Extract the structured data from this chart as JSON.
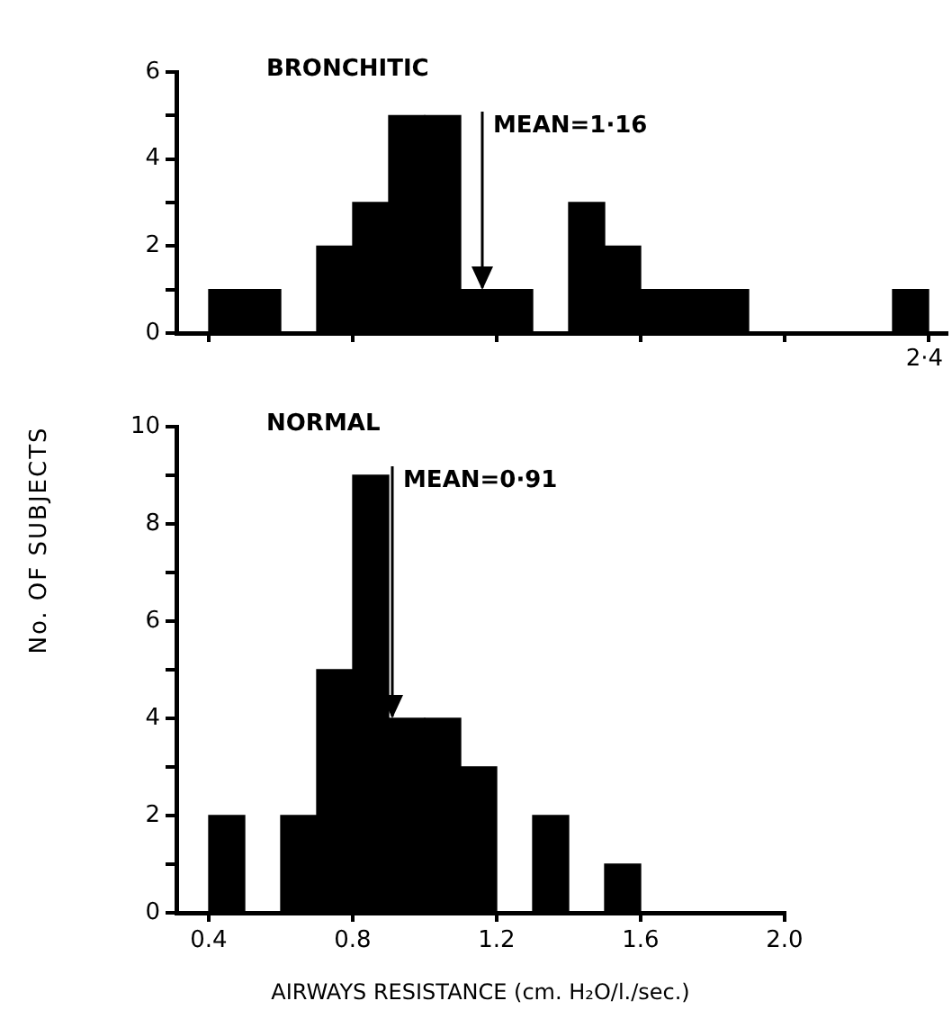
{
  "chart_data": [
    {
      "type": "histogram",
      "title": "BRONCHITIC",
      "color": "#000000",
      "tick_labels": "y",
      "bins": [
        0.4,
        0.5,
        0.6,
        0.7,
        0.8,
        0.9,
        1.0,
        1.1,
        1.2,
        1.3,
        1.4,
        1.5,
        1.6,
        1.7,
        1.8,
        1.9,
        2.0,
        2.1,
        2.2,
        2.3,
        2.4
      ],
      "values": [
        1,
        1,
        0,
        2,
        3,
        5,
        5,
        1,
        1,
        0,
        3,
        2,
        1,
        1,
        1,
        0,
        0,
        0,
        0,
        1
      ],
      "xlim": [
        0.31,
        2.45
      ],
      "xticks": [
        0.4,
        0.8,
        1.2,
        1.6,
        2.0,
        2.4
      ],
      "ylim": [
        0,
        6
      ],
      "yticks": [
        0,
        {
          "value": 1,
          "label": null
        },
        2,
        {
          "value": 3,
          "label": null
        },
        4,
        {
          "value": 5,
          "label": null
        },
        6
      ],
      "ref_lines": [
        {
          "axis": "x",
          "value": 1.16,
          "label": "MEAN=1·16"
        }
      ],
      "annotations": [
        "2·4"
      ]
    },
    {
      "type": "histogram",
      "title": "NORMAL",
      "color": "#000000",
      "ylabel": "No. OF SUBJECTS",
      "xlabel": "AIRWAYS RESISTANCE (cm. H₂O/l./sec.)",
      "bins": [
        0.4,
        0.5,
        0.6,
        0.7,
        0.8,
        0.9,
        1.0,
        1.1,
        1.2,
        1.3,
        1.4,
        1.5,
        1.6
      ],
      "values": [
        2,
        0,
        2,
        5,
        9,
        4,
        4,
        3,
        0,
        2,
        0,
        1
      ],
      "xlim": [
        0.31,
        2.0
      ],
      "xticks": [
        {
          "value": 0.4,
          "label": "0.4"
        },
        {
          "value": 0.8,
          "label": "0.8"
        },
        {
          "value": 1.2,
          "label": "1.2"
        },
        {
          "value": 1.6,
          "label": "1.6"
        },
        {
          "value": 2.0,
          "label": "2.0"
        }
      ],
      "ylim": [
        0,
        10
      ],
      "yticks": [
        0,
        {
          "value": 1,
          "label": null
        },
        2,
        {
          "value": 3,
          "label": null
        },
        4,
        {
          "value": 5,
          "label": null
        },
        6,
        {
          "value": 7,
          "label": null
        },
        8,
        {
          "value": 9,
          "label": null
        },
        10
      ],
      "ref_lines": [
        {
          "axis": "x",
          "value": 0.91,
          "label": "MEAN=0·91"
        }
      ]
    }
  ]
}
